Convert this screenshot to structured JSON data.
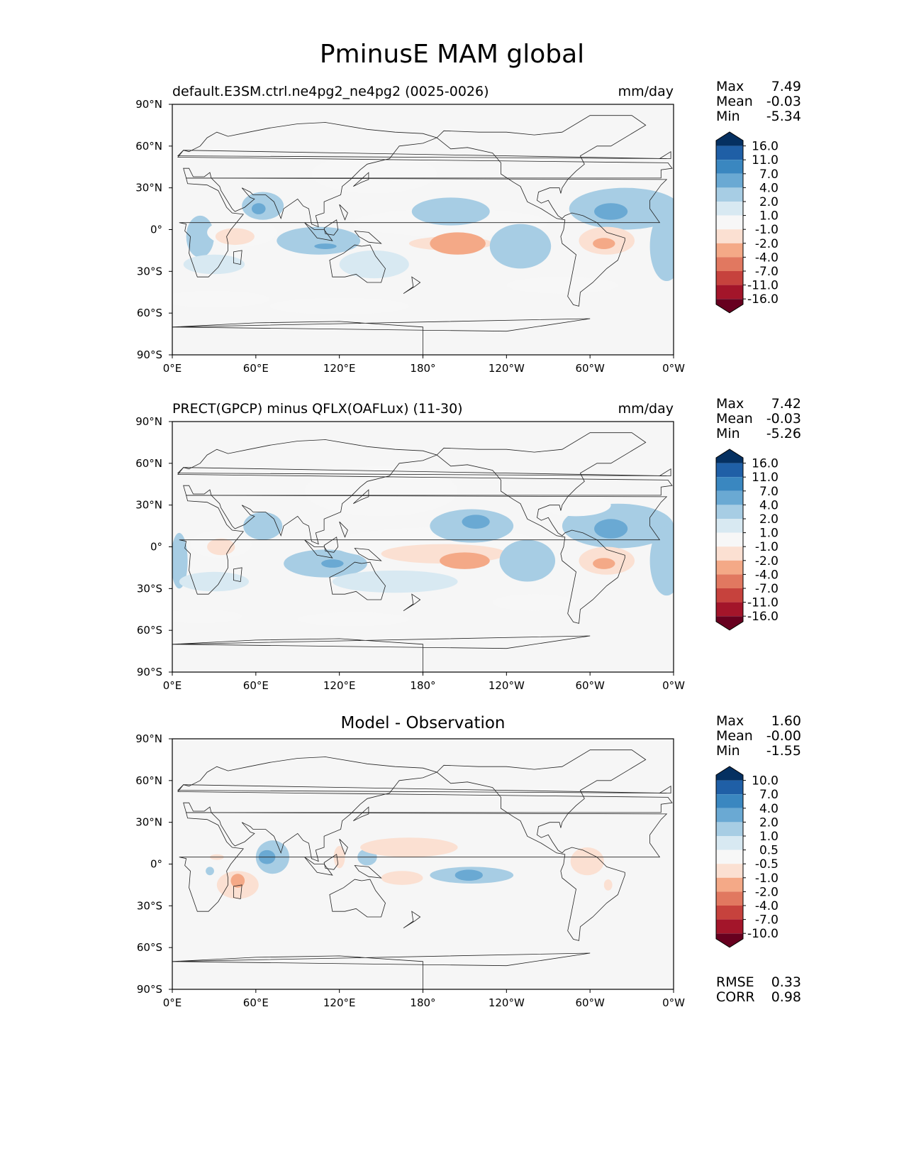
{
  "title": "PminusE MAM global",
  "colors": {
    "ocean": "#f6f6f6",
    "coast": "#222222",
    "palette": [
      "#053061",
      "#1f5fa6",
      "#3a87c0",
      "#6aa9d3",
      "#a7cde4",
      "#d8e9f2",
      "#f7f7f7",
      "#fbe0d2",
      "#f4a987",
      "#e17860",
      "#c6423d",
      "#a3152a",
      "#67001f"
    ]
  },
  "axes": {
    "lat_ticks": [
      "90°N",
      "60°N",
      "30°N",
      "0°",
      "30°S",
      "60°S",
      "90°S"
    ],
    "lon_ticks": [
      "0°E",
      "60°E",
      "120°E",
      "180°",
      "120°W",
      "60°W",
      "0°W"
    ]
  },
  "panels": [
    {
      "title_left": "default.E3SM.ctrl.ne4pg2_ne4pg2 (0025-0026)",
      "title_right": "mm/day",
      "stats": [
        {
          "label": "Max",
          "value": "7.49"
        },
        {
          "label": "Mean",
          "value": "-0.03"
        },
        {
          "label": "Min",
          "value": "-5.34"
        }
      ],
      "colorbar_labels": [
        "16.0",
        "11.0",
        "7.0",
        "4.0",
        "2.0",
        "1.0",
        "-1.0",
        "-2.0",
        "-4.0",
        "-7.0",
        "-11.0",
        "-16.0"
      ]
    },
    {
      "title_left": "PRECT(GPCP) minus QFLX(OAFLux) (11-30)",
      "title_right": "mm/day",
      "stats": [
        {
          "label": "Max",
          "value": "7.42"
        },
        {
          "label": "Mean",
          "value": "-0.03"
        },
        {
          "label": "Min",
          "value": "-5.26"
        }
      ],
      "colorbar_labels": [
        "16.0",
        "11.0",
        "7.0",
        "4.0",
        "2.0",
        "1.0",
        "-1.0",
        "-2.0",
        "-4.0",
        "-7.0",
        "-11.0",
        "-16.0"
      ]
    },
    {
      "title_center": "Model - Observation",
      "stats": [
        {
          "label": "Max",
          "value": "1.60"
        },
        {
          "label": "Mean",
          "value": "-0.00"
        },
        {
          "label": "Min",
          "value": "-1.55"
        }
      ],
      "colorbar_labels": [
        "10.0",
        "7.0",
        "4.0",
        "2.0",
        "1.0",
        "0.5",
        "-0.5",
        "-1.0",
        "-2.0",
        "-4.0",
        "-7.0",
        "-10.0"
      ],
      "metrics": [
        {
          "label": "RMSE",
          "value": "0.33"
        },
        {
          "label": "CORR",
          "value": "0.98"
        }
      ]
    }
  ],
  "chart_data": [
    {
      "type": "heatmap",
      "projection": "plate-carree",
      "xlim": [
        0,
        360
      ],
      "ylim": [
        -90,
        90
      ],
      "units": "mm/day",
      "levels": [
        -16,
        -11,
        -7,
        -4,
        -2,
        -1,
        1,
        2,
        4,
        7,
        11,
        16
      ],
      "features": [
        {
          "lon": 20,
          "lat": -5,
          "rx": 10,
          "ry": 15,
          "level": -2
        },
        {
          "lon": 30,
          "lat": -25,
          "rx": 22,
          "ry": 7,
          "level": -1
        },
        {
          "lon": 65,
          "lat": 17,
          "rx": 15,
          "ry": 10,
          "level": -2
        },
        {
          "lon": 62,
          "lat": 15,
          "rx": 5,
          "ry": 4,
          "level": -4
        },
        {
          "lon": 50,
          "lat": -2,
          "rx": 25,
          "ry": 10,
          "level": 1
        },
        {
          "lon": 45,
          "lat": -5,
          "rx": 14,
          "ry": 6,
          "level": 2
        },
        {
          "lon": 105,
          "lat": -8,
          "rx": 30,
          "ry": 10,
          "level": -2
        },
        {
          "lon": 110,
          "lat": -12,
          "rx": 8,
          "ry": 2,
          "level": -4
        },
        {
          "lon": 145,
          "lat": -25,
          "rx": 25,
          "ry": 10,
          "level": -1
        },
        {
          "lon": 200,
          "lat": 5,
          "rx": 70,
          "ry": 10,
          "level": 1
        },
        {
          "lon": 200,
          "lat": -10,
          "rx": 30,
          "ry": 5,
          "level": 2
        },
        {
          "lon": 145,
          "lat": 40,
          "rx": 45,
          "ry": 14,
          "level": 1
        },
        {
          "lon": 200,
          "lat": 13,
          "rx": 28,
          "ry": 10,
          "level": -2
        },
        {
          "lon": 205,
          "lat": -10,
          "rx": 20,
          "ry": 8,
          "level": 4
        },
        {
          "lon": 250,
          "lat": -12,
          "rx": 22,
          "ry": 16,
          "level": -2
        },
        {
          "lon": 325,
          "lat": 15,
          "rx": 40,
          "ry": 15,
          "level": -2
        },
        {
          "lon": 315,
          "lat": 13,
          "rx": 12,
          "ry": 6,
          "level": -4
        },
        {
          "lon": 312,
          "lat": -8,
          "rx": 20,
          "ry": 10,
          "level": 2
        },
        {
          "lon": 310,
          "lat": -10,
          "rx": 8,
          "ry": 4,
          "level": 4
        },
        {
          "lon": 355,
          "lat": -12,
          "rx": 12,
          "ry": 25,
          "level": -2
        },
        {
          "lon": 30,
          "lat": -50,
          "rx": 40,
          "ry": 6,
          "level": 1
        },
        {
          "lon": 120,
          "lat": -55,
          "rx": 50,
          "ry": 6,
          "level": 1
        },
        {
          "lon": 280,
          "lat": -40,
          "rx": 40,
          "ry": 6,
          "level": 1
        }
      ]
    },
    {
      "type": "heatmap",
      "projection": "plate-carree",
      "xlim": [
        0,
        360
      ],
      "ylim": [
        -90,
        90
      ],
      "units": "mm/day",
      "levels": [
        -16,
        -11,
        -7,
        -4,
        -2,
        -1,
        1,
        2,
        4,
        7,
        11,
        16
      ],
      "features": [
        {
          "lon": 5,
          "lat": -10,
          "rx": 6,
          "ry": 20,
          "level": -2
        },
        {
          "lon": 30,
          "lat": -25,
          "rx": 25,
          "ry": 7,
          "level": -1
        },
        {
          "lon": 65,
          "lat": 15,
          "rx": 14,
          "ry": 10,
          "level": -2
        },
        {
          "lon": 35,
          "lat": 2,
          "rx": 22,
          "ry": 10,
          "level": 1
        },
        {
          "lon": 35,
          "lat": 0,
          "rx": 10,
          "ry": 6,
          "level": 2
        },
        {
          "lon": 110,
          "lat": -12,
          "rx": 30,
          "ry": 10,
          "level": -2
        },
        {
          "lon": 115,
          "lat": -12,
          "rx": 8,
          "ry": 3,
          "level": -4
        },
        {
          "lon": 160,
          "lat": -25,
          "rx": 45,
          "ry": 8,
          "level": -1
        },
        {
          "lon": 190,
          "lat": 2,
          "rx": 75,
          "ry": 12,
          "level": 1
        },
        {
          "lon": 195,
          "lat": -5,
          "rx": 45,
          "ry": 7,
          "level": 2
        },
        {
          "lon": 210,
          "lat": -10,
          "rx": 18,
          "ry": 6,
          "level": 4
        },
        {
          "lon": 150,
          "lat": 40,
          "rx": 55,
          "ry": 18,
          "level": 1
        },
        {
          "lon": 215,
          "lat": 15,
          "rx": 30,
          "ry": 12,
          "level": -2
        },
        {
          "lon": 218,
          "lat": 18,
          "rx": 10,
          "ry": 5,
          "level": -4
        },
        {
          "lon": 255,
          "lat": -10,
          "rx": 20,
          "ry": 15,
          "level": -2
        },
        {
          "lon": 320,
          "lat": 15,
          "rx": 40,
          "ry": 16,
          "level": -2
        },
        {
          "lon": 315,
          "lat": 13,
          "rx": 12,
          "ry": 7,
          "level": -4
        },
        {
          "lon": 312,
          "lat": -10,
          "rx": 20,
          "ry": 10,
          "level": 2
        },
        {
          "lon": 310,
          "lat": -12,
          "rx": 8,
          "ry": 4,
          "level": 4
        },
        {
          "lon": 355,
          "lat": -10,
          "rx": 12,
          "ry": 25,
          "level": -2
        },
        {
          "lon": 290,
          "lat": 30,
          "rx": 25,
          "ry": 8,
          "level": 1
        },
        {
          "lon": 20,
          "lat": -50,
          "rx": 30,
          "ry": 5,
          "level": 1
        },
        {
          "lon": 130,
          "lat": -52,
          "rx": 40,
          "ry": 5,
          "level": 1
        },
        {
          "lon": 260,
          "lat": -40,
          "rx": 30,
          "ry": 6,
          "level": 1
        }
      ]
    },
    {
      "type": "heatmap",
      "projection": "plate-carree",
      "xlim": [
        0,
        360
      ],
      "ylim": [
        -90,
        90
      ],
      "units": "mm/day",
      "levels": [
        -10,
        -7,
        -4,
        -2,
        -1,
        -0.5,
        0.5,
        1,
        2,
        4,
        7,
        10
      ],
      "features": [
        {
          "lon": 72,
          "lat": 5,
          "rx": 12,
          "ry": 12,
          "level": -1
        },
        {
          "lon": 68,
          "lat": 5,
          "rx": 6,
          "ry": 5,
          "level": -2
        },
        {
          "lon": 47,
          "lat": -15,
          "rx": 15,
          "ry": 10,
          "level": 1
        },
        {
          "lon": 47,
          "lat": -12,
          "rx": 5,
          "ry": 5,
          "level": 2
        },
        {
          "lon": 32,
          "lat": 5,
          "rx": 5,
          "ry": 2,
          "level": 1
        },
        {
          "lon": 27,
          "lat": -5,
          "rx": 3,
          "ry": 3,
          "level": -1
        },
        {
          "lon": 140,
          "lat": 5,
          "rx": 7,
          "ry": 6,
          "level": -1
        },
        {
          "lon": 120,
          "lat": 5,
          "rx": 4,
          "ry": 8,
          "level": 1
        },
        {
          "lon": 170,
          "lat": 12,
          "rx": 35,
          "ry": 7,
          "level": 1
        },
        {
          "lon": 165,
          "lat": -10,
          "rx": 15,
          "ry": 5,
          "level": 1
        },
        {
          "lon": 215,
          "lat": -8,
          "rx": 30,
          "ry": 6,
          "level": -1
        },
        {
          "lon": 213,
          "lat": -8,
          "rx": 10,
          "ry": 4,
          "level": -2
        },
        {
          "lon": 298,
          "lat": 2,
          "rx": 12,
          "ry": 10,
          "level": 1
        },
        {
          "lon": 313,
          "lat": -15,
          "rx": 3,
          "ry": 4,
          "level": 1
        }
      ]
    }
  ]
}
